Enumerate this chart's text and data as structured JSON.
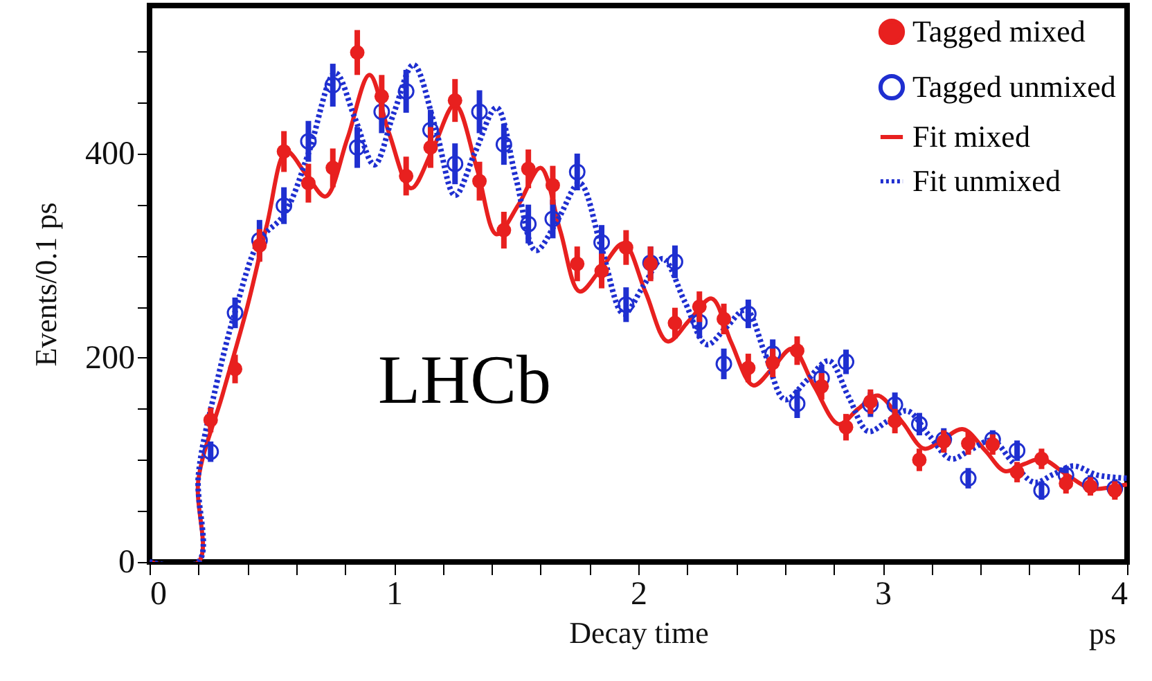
{
  "chart_data": {
    "type": "scatter",
    "xlabel": "Decay time",
    "ylabel": "Events/0.1  ps",
    "annotations": [
      "LHCb",
      "ps"
    ],
    "xlim": [
      0,
      4
    ],
    "ylim": [
      0,
      545
    ],
    "xticks": [
      0,
      {
        "value": 0.2,
        "label": null
      },
      {
        "value": 0.4,
        "label": null
      },
      {
        "value": 0.6,
        "label": null
      },
      {
        "value": 0.8,
        "label": null
      },
      1,
      {
        "value": 1.2,
        "label": null
      },
      {
        "value": 1.4,
        "label": null
      },
      {
        "value": 1.6,
        "label": null
      },
      {
        "value": 1.8,
        "label": null
      },
      2,
      {
        "value": 2.2,
        "label": null
      },
      {
        "value": 2.4,
        "label": null
      },
      {
        "value": 2.6,
        "label": null
      },
      {
        "value": 2.8,
        "label": null
      },
      3,
      {
        "value": 3.2,
        "label": null
      },
      {
        "value": 3.4,
        "label": null
      },
      {
        "value": 3.6,
        "label": null
      },
      {
        "value": 3.8,
        "label": null
      },
      4
    ],
    "yticks": [
      0,
      {
        "value": 50,
        "label": null
      },
      {
        "value": 100,
        "label": null
      },
      {
        "value": 150,
        "label": null
      },
      200,
      {
        "value": 250,
        "label": null
      },
      {
        "value": 300,
        "label": null
      },
      {
        "value": 350,
        "label": null
      },
      400,
      {
        "value": 450,
        "label": null
      },
      {
        "value": 500,
        "label": null
      }
    ],
    "grid": false,
    "legend": "top right",
    "x": [
      0.25,
      0.35,
      0.45,
      0.55,
      0.65,
      0.75,
      0.85,
      0.95,
      1.05,
      1.15,
      1.25,
      1.35,
      1.45,
      1.55,
      1.65,
      1.75,
      1.85,
      1.95,
      2.05,
      2.15,
      2.25,
      2.35,
      2.45,
      2.55,
      2.65,
      2.75,
      2.85,
      2.95,
      3.05,
      3.15,
      3.25,
      3.35,
      3.45,
      3.55,
      3.65,
      3.75,
      3.85,
      3.95
    ],
    "series": [
      {
        "name": "Tagged mixed",
        "marker": "circle",
        "color": "#e8201f",
        "values": [
          139,
          189,
          310,
          402,
          371,
          386,
          499,
          456,
          378,
          406,
          452,
          373,
          325,
          385,
          369,
          292,
          285,
          308,
          292,
          234,
          250,
          238,
          190,
          195,
          207,
          172,
          132,
          157,
          138,
          100,
          118,
          116,
          115,
          88,
          101,
          77,
          74,
          70
        ],
        "errors": [
          12,
          14,
          16,
          20,
          19,
          19,
          22,
          21,
          19,
          20,
          21,
          19,
          18,
          19,
          19,
          17,
          17,
          17,
          17,
          15,
          15,
          15,
          14,
          14,
          14,
          13,
          13,
          12,
          12,
          11,
          11,
          11,
          10,
          10,
          10,
          10,
          9,
          9
        ]
      },
      {
        "name": "Tagged unmixed",
        "marker": "circle",
        "color": "#1f2fd0",
        "values": [
          108,
          244,
          315,
          349,
          412,
          467,
          406,
          441,
          461,
          423,
          390,
          441,
          409,
          331,
          336,
          382,
          313,
          252,
          293,
          294,
          235,
          194,
          243,
          204,
          155,
          180,
          196,
          154,
          154,
          135,
          120,
          82,
          120,
          109,
          70,
          85,
          76,
          72
        ],
        "errors": [
          10,
          15,
          20,
          18,
          20,
          21,
          20,
          21,
          21,
          20,
          20,
          21,
          20,
          19,
          19,
          18,
          17,
          17,
          16,
          16,
          16,
          15,
          14,
          14,
          14,
          13,
          12,
          12,
          12,
          11,
          11,
          10,
          9,
          10,
          9,
          9,
          9,
          9
        ]
      },
      {
        "name": "Fit mixed",
        "type": "line",
        "line_style": "solid",
        "color": "#e8201f",
        "x": [
          0,
          0.2,
          0.2,
          0.3,
          0.4,
          0.48,
          0.56,
          0.64,
          0.72,
          0.81,
          0.9,
          0.98,
          1.07,
          1.16,
          1.25,
          1.34,
          1.42,
          1.51,
          1.6,
          1.68,
          1.76,
          1.85,
          1.94,
          2.03,
          2.12,
          2.21,
          2.3,
          2.38,
          2.47,
          2.55,
          2.63,
          2.72,
          2.82,
          2.9,
          2.98,
          3.08,
          3.17,
          3.25,
          3.33,
          3.42,
          3.5,
          3.58,
          3.65,
          3.75,
          3.85,
          3.93,
          4.0
        ],
        "values": [
          0,
          0,
          81,
          165,
          250,
          330,
          402,
          380,
          358,
          415,
          477,
          420,
          366,
          405,
          448,
          385,
          321,
          350,
          386,
          325,
          265,
          288,
          312,
          264,
          216,
          237,
          258,
          215,
          173,
          190,
          209,
          172,
          135,
          150,
          163,
          137,
          111,
          121,
          130,
          109,
          89,
          96,
          101,
          86,
          72,
          73,
          76
        ]
      },
      {
        "name": "Fit unmixed",
        "type": "line",
        "line_style": "dotted",
        "color": "#1f2fd0",
        "x": [
          0,
          0.2,
          0.2,
          0.27,
          0.35,
          0.45,
          0.55,
          0.65,
          0.76,
          0.84,
          0.92,
          1.0,
          1.08,
          1.17,
          1.25,
          1.33,
          1.42,
          1.5,
          1.58,
          1.67,
          1.76,
          1.85,
          1.94,
          2.02,
          2.1,
          2.19,
          2.28,
          2.36,
          2.44,
          2.52,
          2.6,
          2.69,
          2.78,
          2.86,
          2.94,
          3.02,
          3.1,
          3.19,
          3.28,
          3.36,
          3.45,
          3.53,
          3.62,
          3.7,
          3.78,
          3.88,
          4.0
        ],
        "values": [
          0,
          0,
          85,
          170,
          245,
          315,
          340,
          400,
          479,
          435,
          389,
          440,
          487,
          425,
          359,
          400,
          445,
          375,
          305,
          335,
          371,
          307,
          243,
          270,
          297,
          255,
          213,
          230,
          247,
          203,
          159,
          178,
          197,
          162,
          128,
          138,
          148,
          124,
          101,
          110,
          119,
          98,
          78,
          86,
          94,
          85,
          82
        ]
      }
    ]
  }
}
